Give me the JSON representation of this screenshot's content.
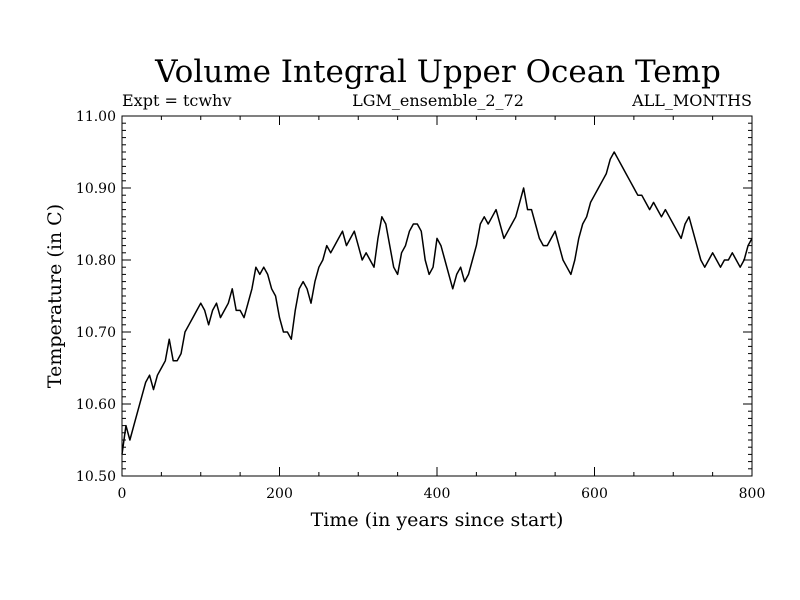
{
  "chart_data": {
    "type": "line",
    "title": "Volume Integral Upper Ocean Temp",
    "subtitle_left": "Expt = tcwhv",
    "subtitle_center": "LGM_ensemble_2_72",
    "subtitle_right": "ALL_MONTHS",
    "xlabel": "Time (in years since start)",
    "ylabel": "Temperature (in C)",
    "xlim": [
      0,
      800
    ],
    "ylim": [
      10.5,
      11.0
    ],
    "x_ticks": [
      0,
      200,
      400,
      600,
      800
    ],
    "x_tick_labels": [
      "0",
      "200",
      "400",
      "600",
      "800"
    ],
    "y_ticks": [
      10.5,
      10.6,
      10.7,
      10.8,
      10.9,
      11.0
    ],
    "y_tick_labels": [
      "10.50",
      "10.60",
      "10.70",
      "10.80",
      "10.90",
      "11.00"
    ],
    "x_minor_step": 50,
    "y_minor_step": 0.01,
    "grid": false,
    "series": [
      {
        "name": "Volume Integral Upper Ocean Temp",
        "x": [
          0,
          5,
          10,
          15,
          20,
          25,
          30,
          35,
          40,
          45,
          50,
          55,
          60,
          65,
          70,
          75,
          80,
          85,
          90,
          95,
          100,
          105,
          110,
          115,
          120,
          125,
          130,
          135,
          140,
          145,
          150,
          155,
          160,
          165,
          170,
          175,
          180,
          185,
          190,
          195,
          200,
          205,
          210,
          215,
          220,
          225,
          230,
          235,
          240,
          245,
          250,
          255,
          260,
          265,
          270,
          275,
          280,
          285,
          290,
          295,
          300,
          305,
          310,
          315,
          320,
          325,
          330,
          335,
          340,
          345,
          350,
          355,
          360,
          365,
          370,
          375,
          380,
          385,
          390,
          395,
          400,
          405,
          410,
          415,
          420,
          425,
          430,
          435,
          440,
          445,
          450,
          455,
          460,
          465,
          470,
          475,
          480,
          485,
          490,
          495,
          500,
          505,
          510,
          515,
          520,
          525,
          530,
          535,
          540,
          545,
          550,
          555,
          560,
          565,
          570,
          575,
          580,
          585,
          590,
          595,
          600,
          605,
          610,
          615,
          620,
          625,
          630,
          635,
          640,
          645,
          650,
          655,
          660,
          665,
          670,
          675,
          680,
          685,
          690,
          695,
          700,
          705,
          710,
          715,
          720,
          725,
          730,
          735,
          740,
          745,
          750,
          755,
          760,
          765,
          770,
          775,
          780,
          785,
          790,
          795,
          800
        ],
        "values": [
          10.53,
          10.57,
          10.55,
          10.57,
          10.59,
          10.61,
          10.63,
          10.64,
          10.62,
          10.64,
          10.65,
          10.66,
          10.69,
          10.66,
          10.66,
          10.67,
          10.7,
          10.71,
          10.72,
          10.73,
          10.74,
          10.73,
          10.71,
          10.73,
          10.74,
          10.72,
          10.73,
          10.74,
          10.76,
          10.73,
          10.73,
          10.72,
          10.74,
          10.76,
          10.79,
          10.78,
          10.79,
          10.78,
          10.76,
          10.75,
          10.72,
          10.7,
          10.7,
          10.69,
          10.73,
          10.76,
          10.77,
          10.76,
          10.74,
          10.77,
          10.79,
          10.8,
          10.82,
          10.81,
          10.82,
          10.83,
          10.84,
          10.82,
          10.83,
          10.84,
          10.82,
          10.8,
          10.81,
          10.8,
          10.79,
          10.83,
          10.86,
          10.85,
          10.82,
          10.79,
          10.78,
          10.81,
          10.82,
          10.84,
          10.85,
          10.85,
          10.84,
          10.8,
          10.78,
          10.79,
          10.83,
          10.82,
          10.8,
          10.78,
          10.76,
          10.78,
          10.79,
          10.77,
          10.78,
          10.8,
          10.82,
          10.85,
          10.86,
          10.85,
          10.86,
          10.87,
          10.85,
          10.83,
          10.84,
          10.85,
          10.86,
          10.88,
          10.9,
          10.87,
          10.87,
          10.85,
          10.83,
          10.82,
          10.82,
          10.83,
          10.84,
          10.82,
          10.8,
          10.79,
          10.78,
          10.8,
          10.83,
          10.85,
          10.86,
          10.88,
          10.89,
          10.9,
          10.91,
          10.92,
          10.94,
          10.95,
          10.94,
          10.93,
          10.92,
          10.91,
          10.9,
          10.89,
          10.89,
          10.88,
          10.87,
          10.88,
          10.87,
          10.86,
          10.87,
          10.86,
          10.85,
          10.84,
          10.83,
          10.85,
          10.86,
          10.84,
          10.82,
          10.8,
          10.79,
          10.8,
          10.81,
          10.8,
          10.79,
          10.8,
          10.8,
          10.81,
          10.8,
          10.79,
          10.8,
          10.82,
          10.83
        ]
      }
    ]
  }
}
